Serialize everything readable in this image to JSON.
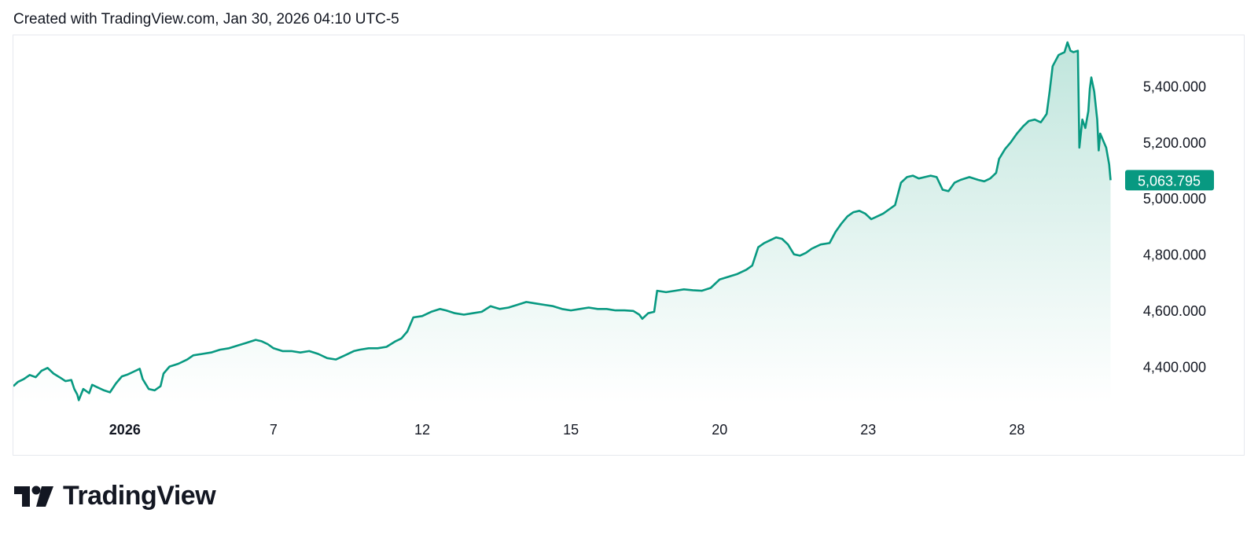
{
  "header": {
    "text": "Created with TradingView.com, Jan 30, 2026 04:10 UTC-5"
  },
  "brand": {
    "name": "TradingView",
    "logo_icon": "tradingview-logo-icon"
  },
  "colors": {
    "line": "#089981",
    "fill_top": "#bfe5dc",
    "fill_bottom": "#ffffff",
    "label_bg": "#089981",
    "label_text": "#ffffff",
    "text": "#131722"
  },
  "chart_data": {
    "type": "area",
    "y_ticks": [
      "4,400.000",
      "4,600.000",
      "4,800.000",
      "5,000.000",
      "5,200.000",
      "5,400.000"
    ],
    "y_tick_values": [
      4400,
      4600,
      4800,
      5000,
      5200,
      5400
    ],
    "ylim": [
      4270,
      5580
    ],
    "x_ticks": [
      {
        "label": "2026",
        "t": 4.2,
        "bold": true
      },
      {
        "label": "7",
        "t": 9.2
      },
      {
        "label": "12",
        "t": 14.2
      },
      {
        "label": "15",
        "t": 19.2
      },
      {
        "label": "20",
        "t": 24.2
      },
      {
        "label": "23",
        "t": 29.2
      },
      {
        "label": "28",
        "t": 34.2
      }
    ],
    "xlim": [
      0.45,
      37.6
    ],
    "last_price_label": "5,063.795",
    "last_value": 5063.795,
    "grid": false,
    "series": [
      {
        "points": [
          [
            0.45,
            4330
          ],
          [
            0.6,
            4345
          ],
          [
            0.8,
            4355
          ],
          [
            1.0,
            4370
          ],
          [
            1.2,
            4362
          ],
          [
            1.4,
            4385
          ],
          [
            1.6,
            4395
          ],
          [
            1.8,
            4375
          ],
          [
            2.0,
            4362
          ],
          [
            2.2,
            4348
          ],
          [
            2.4,
            4352
          ],
          [
            2.5,
            4320
          ],
          [
            2.6,
            4300
          ],
          [
            2.65,
            4280
          ],
          [
            2.8,
            4320
          ],
          [
            3.0,
            4305
          ],
          [
            3.1,
            4335
          ],
          [
            3.3,
            4325
          ],
          [
            3.5,
            4315
          ],
          [
            3.7,
            4308
          ],
          [
            3.9,
            4340
          ],
          [
            4.1,
            4365
          ],
          [
            4.3,
            4372
          ],
          [
            4.5,
            4382
          ],
          [
            4.7,
            4392
          ],
          [
            4.8,
            4355
          ],
          [
            5.0,
            4320
          ],
          [
            5.2,
            4315
          ],
          [
            5.4,
            4330
          ],
          [
            5.5,
            4375
          ],
          [
            5.7,
            4400
          ],
          [
            6.0,
            4410
          ],
          [
            6.3,
            4425
          ],
          [
            6.5,
            4440
          ],
          [
            6.8,
            4445
          ],
          [
            7.1,
            4450
          ],
          [
            7.4,
            4460
          ],
          [
            7.7,
            4465
          ],
          [
            8.0,
            4475
          ],
          [
            8.3,
            4485
          ],
          [
            8.6,
            4495
          ],
          [
            8.8,
            4490
          ],
          [
            9.0,
            4480
          ],
          [
            9.2,
            4465
          ],
          [
            9.5,
            4455
          ],
          [
            9.8,
            4455
          ],
          [
            10.1,
            4450
          ],
          [
            10.4,
            4455
          ],
          [
            10.7,
            4445
          ],
          [
            11.0,
            4430
          ],
          [
            11.3,
            4425
          ],
          [
            11.6,
            4440
          ],
          [
            11.9,
            4455
          ],
          [
            12.1,
            4460
          ],
          [
            12.4,
            4465
          ],
          [
            12.7,
            4465
          ],
          [
            13.0,
            4470
          ],
          [
            13.3,
            4490
          ],
          [
            13.5,
            4500
          ],
          [
            13.7,
            4525
          ],
          [
            13.9,
            4575
          ],
          [
            14.2,
            4580
          ],
          [
            14.5,
            4595
          ],
          [
            14.8,
            4605
          ],
          [
            15.0,
            4600
          ],
          [
            15.3,
            4590
          ],
          [
            15.6,
            4585
          ],
          [
            15.9,
            4590
          ],
          [
            16.2,
            4595
          ],
          [
            16.5,
            4615
          ],
          [
            16.8,
            4605
          ],
          [
            17.1,
            4610
          ],
          [
            17.4,
            4620
          ],
          [
            17.7,
            4630
          ],
          [
            18.0,
            4625
          ],
          [
            18.3,
            4620
          ],
          [
            18.6,
            4615
          ],
          [
            18.9,
            4605
          ],
          [
            19.2,
            4600
          ],
          [
            19.5,
            4605
          ],
          [
            19.8,
            4610
          ],
          [
            20.1,
            4605
          ],
          [
            20.4,
            4605
          ],
          [
            20.7,
            4600
          ],
          [
            21.0,
            4600
          ],
          [
            21.3,
            4598
          ],
          [
            21.5,
            4585
          ],
          [
            21.6,
            4570
          ],
          [
            21.8,
            4590
          ],
          [
            22.0,
            4595
          ],
          [
            22.1,
            4670
          ],
          [
            22.4,
            4665
          ],
          [
            22.7,
            4670
          ],
          [
            23.0,
            4675
          ],
          [
            23.3,
            4672
          ],
          [
            23.6,
            4670
          ],
          [
            23.9,
            4680
          ],
          [
            24.2,
            4710
          ],
          [
            24.5,
            4720
          ],
          [
            24.8,
            4730
          ],
          [
            25.1,
            4745
          ],
          [
            25.3,
            4760
          ],
          [
            25.5,
            4825
          ],
          [
            25.7,
            4840
          ],
          [
            25.9,
            4850
          ],
          [
            26.1,
            4860
          ],
          [
            26.3,
            4855
          ],
          [
            26.5,
            4835
          ],
          [
            26.7,
            4800
          ],
          [
            26.9,
            4795
          ],
          [
            27.1,
            4805
          ],
          [
            27.3,
            4820
          ],
          [
            27.6,
            4835
          ],
          [
            27.9,
            4840
          ],
          [
            28.1,
            4880
          ],
          [
            28.3,
            4910
          ],
          [
            28.5,
            4935
          ],
          [
            28.7,
            4950
          ],
          [
            28.9,
            4955
          ],
          [
            29.1,
            4945
          ],
          [
            29.3,
            4925
          ],
          [
            29.5,
            4935
          ],
          [
            29.7,
            4945
          ],
          [
            29.9,
            4960
          ],
          [
            30.1,
            4975
          ],
          [
            30.3,
            5055
          ],
          [
            30.5,
            5075
          ],
          [
            30.7,
            5080
          ],
          [
            30.9,
            5070
          ],
          [
            31.1,
            5075
          ],
          [
            31.3,
            5080
          ],
          [
            31.5,
            5075
          ],
          [
            31.7,
            5030
          ],
          [
            31.9,
            5025
          ],
          [
            32.1,
            5055
          ],
          [
            32.3,
            5065
          ],
          [
            32.6,
            5075
          ],
          [
            32.9,
            5065
          ],
          [
            33.1,
            5060
          ],
          [
            33.3,
            5070
          ],
          [
            33.5,
            5090
          ],
          [
            33.6,
            5140
          ],
          [
            33.8,
            5175
          ],
          [
            34.0,
            5200
          ],
          [
            34.2,
            5230
          ],
          [
            34.4,
            5255
          ],
          [
            34.6,
            5275
          ],
          [
            34.8,
            5280
          ],
          [
            35.0,
            5270
          ],
          [
            35.1,
            5285
          ],
          [
            35.2,
            5300
          ],
          [
            35.3,
            5380
          ],
          [
            35.4,
            5470
          ],
          [
            35.6,
            5510
          ],
          [
            35.8,
            5520
          ],
          [
            35.9,
            5555
          ],
          [
            36.0,
            5525
          ],
          [
            36.1,
            5520
          ],
          [
            36.25,
            5525
          ],
          [
            36.3,
            5180
          ],
          [
            36.4,
            5280
          ],
          [
            36.5,
            5250
          ],
          [
            36.6,
            5310
          ],
          [
            36.65,
            5390
          ],
          [
            36.7,
            5430
          ],
          [
            36.8,
            5380
          ],
          [
            36.9,
            5280
          ],
          [
            36.95,
            5170
          ],
          [
            37.0,
            5230
          ],
          [
            37.1,
            5205
          ],
          [
            37.2,
            5180
          ],
          [
            37.25,
            5150
          ],
          [
            37.3,
            5120
          ],
          [
            37.35,
            5063.795
          ]
        ]
      }
    ]
  }
}
